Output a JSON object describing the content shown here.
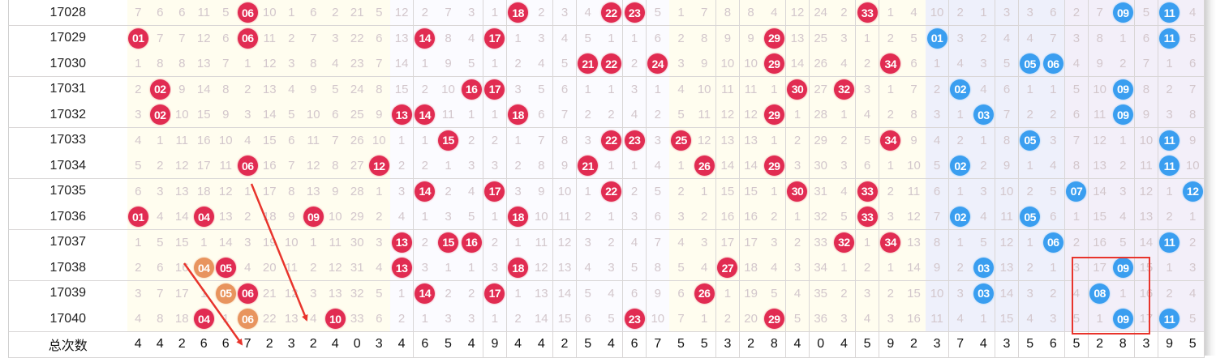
{
  "footer_label": "总次数",
  "colors": {
    "red_ball": "#e12c52",
    "blue_ball": "#3a9ef0",
    "orange_ball": "#e8945e",
    "annotation": "#e8342c"
  },
  "rows": [
    {
      "period": "17028",
      "red": [
        "7",
        "6",
        "6",
        "11",
        "5",
        "06",
        "10",
        "1",
        "6",
        "2",
        "21",
        "5",
        "12",
        "2",
        "7",
        "3",
        "1",
        "18",
        "2",
        "3",
        "4",
        "22",
        "23",
        "5",
        "1",
        "7",
        "8",
        "8",
        "4",
        "12",
        "24",
        "2",
        "33",
        "1",
        "4"
      ],
      "red_hits": [
        "06",
        "18",
        "22",
        "23",
        "33"
      ],
      "orange": [],
      "blue": [
        "10",
        "2",
        "1",
        "3",
        "3",
        "6",
        "2",
        "7",
        "09",
        "5",
        "11",
        "4"
      ],
      "blue_hits": [
        "09",
        "11"
      ]
    },
    {
      "period": "17029",
      "red": [
        "01",
        "7",
        "7",
        "12",
        "6",
        "06",
        "11",
        "2",
        "7",
        "3",
        "22",
        "6",
        "13",
        "14",
        "8",
        "4",
        "17",
        "1",
        "3",
        "4",
        "5",
        "1",
        "1",
        "6",
        "2",
        "8",
        "9",
        "9",
        "29",
        "13",
        "25",
        "3",
        "1",
        "2",
        "5"
      ],
      "red_hits": [
        "01",
        "06",
        "14",
        "17",
        "29"
      ],
      "orange": [],
      "blue": [
        "01",
        "3",
        "2",
        "4",
        "4",
        "7",
        "3",
        "8",
        "1",
        "6",
        "11",
        "5"
      ],
      "blue_hits": [
        "01",
        "11"
      ]
    },
    {
      "period": "17030",
      "red": [
        "1",
        "8",
        "8",
        "13",
        "7",
        "1",
        "12",
        "3",
        "8",
        "4",
        "23",
        "7",
        "14",
        "1",
        "9",
        "5",
        "1",
        "2",
        "4",
        "5",
        "21",
        "22",
        "2",
        "24",
        "3",
        "9",
        "10",
        "10",
        "29",
        "14",
        "26",
        "4",
        "2",
        "34",
        "6"
      ],
      "red_hits": [
        "21",
        "22",
        "24",
        "29",
        "34"
      ],
      "orange": [],
      "blue": [
        "1",
        "4",
        "3",
        "5",
        "05",
        "06",
        "4",
        "9",
        "2",
        "7",
        "1",
        "6"
      ],
      "blue_hits": [
        "05",
        "06"
      ]
    },
    {
      "period": "17031",
      "red": [
        "2",
        "02",
        "9",
        "14",
        "8",
        "2",
        "13",
        "4",
        "9",
        "5",
        "24",
        "8",
        "15",
        "2",
        "10",
        "16",
        "17",
        "3",
        "5",
        "6",
        "1",
        "1",
        "3",
        "1",
        "4",
        "10",
        "11",
        "11",
        "1",
        "30",
        "27",
        "32",
        "3",
        "1",
        "7"
      ],
      "red_hits": [
        "02",
        "16",
        "17",
        "30",
        "32"
      ],
      "orange": [],
      "blue": [
        "2",
        "02",
        "4",
        "6",
        "1",
        "1",
        "5",
        "10",
        "09",
        "8",
        "2",
        "7"
      ],
      "blue_hits": [
        "02",
        "09"
      ]
    },
    {
      "period": "17032",
      "red": [
        "3",
        "02",
        "10",
        "15",
        "9",
        "3",
        "14",
        "5",
        "10",
        "6",
        "25",
        "9",
        "13",
        "14",
        "11",
        "1",
        "1",
        "18",
        "6",
        "7",
        "2",
        "2",
        "4",
        "2",
        "5",
        "11",
        "12",
        "12",
        "29",
        "1",
        "28",
        "1",
        "4",
        "2",
        "8"
      ],
      "red_hits": [
        "02",
        "13",
        "14",
        "18",
        "29"
      ],
      "orange": [],
      "blue": [
        "3",
        "1",
        "03",
        "7",
        "2",
        "2",
        "6",
        "11",
        "09",
        "9",
        "3",
        "8"
      ],
      "blue_hits": [
        "03",
        "09"
      ]
    },
    {
      "period": "17033",
      "red": [
        "4",
        "1",
        "11",
        "16",
        "10",
        "4",
        "15",
        "6",
        "11",
        "7",
        "26",
        "10",
        "1",
        "1",
        "15",
        "2",
        "2",
        "1",
        "7",
        "8",
        "3",
        "22",
        "23",
        "3",
        "25",
        "12",
        "13",
        "13",
        "1",
        "2",
        "29",
        "2",
        "5",
        "34",
        "9"
      ],
      "red_hits": [
        "15",
        "22",
        "23",
        "25",
        "34"
      ],
      "orange": [],
      "blue": [
        "4",
        "2",
        "1",
        "8",
        "05",
        "3",
        "7",
        "12",
        "1",
        "10",
        "11",
        "9"
      ],
      "blue_hits": [
        "05",
        "11"
      ]
    },
    {
      "period": "17034",
      "red": [
        "5",
        "2",
        "12",
        "17",
        "11",
        "06",
        "16",
        "7",
        "12",
        "8",
        "27",
        "12",
        "2",
        "2",
        "1",
        "3",
        "3",
        "2",
        "8",
        "9",
        "21",
        "1",
        "1",
        "4",
        "1",
        "26",
        "14",
        "14",
        "29",
        "3",
        "30",
        "3",
        "6",
        "1",
        "10"
      ],
      "red_hits": [
        "06",
        "12",
        "21",
        "26",
        "29"
      ],
      "orange": [],
      "blue": [
        "5",
        "02",
        "2",
        "9",
        "1",
        "4",
        "8",
        "13",
        "2",
        "11",
        "11",
        "10"
      ],
      "blue_hits": [
        "02",
        "11"
      ]
    },
    {
      "period": "17035",
      "red": [
        "6",
        "3",
        "13",
        "18",
        "12",
        "1",
        "17",
        "8",
        "13",
        "9",
        "28",
        "1",
        "3",
        "14",
        "2",
        "4",
        "17",
        "3",
        "9",
        "10",
        "1",
        "22",
        "2",
        "5",
        "2",
        "1",
        "15",
        "15",
        "1",
        "30",
        "31",
        "4",
        "33",
        "2",
        "11"
      ],
      "red_hits": [
        "14",
        "17",
        "22",
        "30",
        "33"
      ],
      "orange": [],
      "blue": [
        "6",
        "1",
        "3",
        "10",
        "2",
        "5",
        "07",
        "14",
        "3",
        "12",
        "1",
        "12"
      ],
      "blue_hits": [
        "07",
        "12"
      ]
    },
    {
      "period": "17036",
      "red": [
        "01",
        "4",
        "14",
        "04",
        "13",
        "2",
        "18",
        "9",
        "09",
        "10",
        "29",
        "2",
        "4",
        "1",
        "3",
        "5",
        "1",
        "18",
        "10",
        "11",
        "2",
        "1",
        "3",
        "6",
        "3",
        "2",
        "16",
        "16",
        "2",
        "1",
        "32",
        "5",
        "33",
        "3",
        "12"
      ],
      "red_hits": [
        "01",
        "04",
        "09",
        "18",
        "33"
      ],
      "orange": [],
      "blue": [
        "7",
        "02",
        "4",
        "11",
        "05",
        "6",
        "1",
        "15",
        "4",
        "13",
        "2",
        "1"
      ],
      "blue_hits": [
        "02",
        "05"
      ]
    },
    {
      "period": "17037",
      "red": [
        "1",
        "5",
        "15",
        "1",
        "14",
        "3",
        "19",
        "10",
        "1",
        "11",
        "30",
        "3",
        "13",
        "2",
        "15",
        "16",
        "2",
        "1",
        "11",
        "12",
        "3",
        "2",
        "4",
        "7",
        "4",
        "3",
        "17",
        "17",
        "3",
        "2",
        "33",
        "32",
        "1",
        "34",
        "13"
      ],
      "red_hits": [
        "13",
        "15",
        "16",
        "32",
        "34"
      ],
      "orange": [],
      "blue": [
        "8",
        "1",
        "5",
        "12",
        "1",
        "06",
        "2",
        "16",
        "5",
        "14",
        "11",
        "2"
      ],
      "blue_hits": [
        "06",
        "11"
      ]
    },
    {
      "period": "17038",
      "red": [
        "2",
        "6",
        "16",
        "04",
        "05",
        "4",
        "20",
        "11",
        "2",
        "12",
        "31",
        "4",
        "13",
        "3",
        "1",
        "1",
        "3",
        "18",
        "12",
        "13",
        "4",
        "3",
        "5",
        "8",
        "5",
        "4",
        "27",
        "18",
        "4",
        "3",
        "34",
        "1",
        "2",
        "1",
        "14"
      ],
      "red_hits": [
        "05",
        "13",
        "18",
        "27"
      ],
      "orange": [
        "04"
      ],
      "blue": [
        "9",
        "2",
        "03",
        "13",
        "2",
        "1",
        "3",
        "17",
        "09",
        "15",
        "1",
        "3"
      ],
      "blue_hits": [
        "03",
        "09"
      ]
    },
    {
      "period": "17039",
      "red": [
        "3",
        "7",
        "17",
        "1",
        "05",
        "06",
        "21",
        "12",
        "3",
        "13",
        "32",
        "5",
        "1",
        "14",
        "2",
        "2",
        "17",
        "1",
        "13",
        "14",
        "5",
        "4",
        "6",
        "9",
        "6",
        "26",
        "1",
        "19",
        "5",
        "4",
        "35",
        "2",
        "3",
        "2",
        "15"
      ],
      "red_hits": [
        "06",
        "14",
        "17",
        "26"
      ],
      "orange": [
        "05"
      ],
      "blue": [
        "10",
        "3",
        "03",
        "14",
        "3",
        "2",
        "4",
        "08",
        "1",
        "16",
        "2",
        "4"
      ],
      "blue_hits": [
        "03",
        "08"
      ]
    },
    {
      "period": "17040",
      "red": [
        "4",
        "8",
        "18",
        "04",
        "1",
        "06",
        "22",
        "13",
        "4",
        "10",
        "33",
        "6",
        "2",
        "1",
        "3",
        "3",
        "1",
        "2",
        "14",
        "15",
        "6",
        "5",
        "23",
        "10",
        "7",
        "1",
        "2",
        "20",
        "29",
        "5",
        "36",
        "3",
        "4",
        "3",
        "16"
      ],
      "red_hits": [
        "04",
        "10",
        "23",
        "29"
      ],
      "orange": [
        "06"
      ],
      "blue": [
        "11",
        "4",
        "1",
        "15",
        "4",
        "3",
        "5",
        "1",
        "09",
        "17",
        "11",
        "5"
      ],
      "blue_hits": [
        "09",
        "11"
      ]
    }
  ],
  "totals": {
    "red": [
      "4",
      "4",
      "2",
      "6",
      "6",
      "7",
      "2",
      "3",
      "2",
      "4",
      "0",
      "3",
      "4",
      "6",
      "5",
      "4",
      "9",
      "4",
      "4",
      "2",
      "5",
      "4",
      "6",
      "7",
      "5",
      "5",
      "3",
      "2",
      "8",
      "4",
      "0",
      "4",
      "5",
      "9",
      "2"
    ],
    "blue": [
      "3",
      "7",
      "4",
      "3",
      "5",
      "6",
      "5",
      "2",
      "8",
      "3",
      "9",
      "5"
    ]
  }
}
